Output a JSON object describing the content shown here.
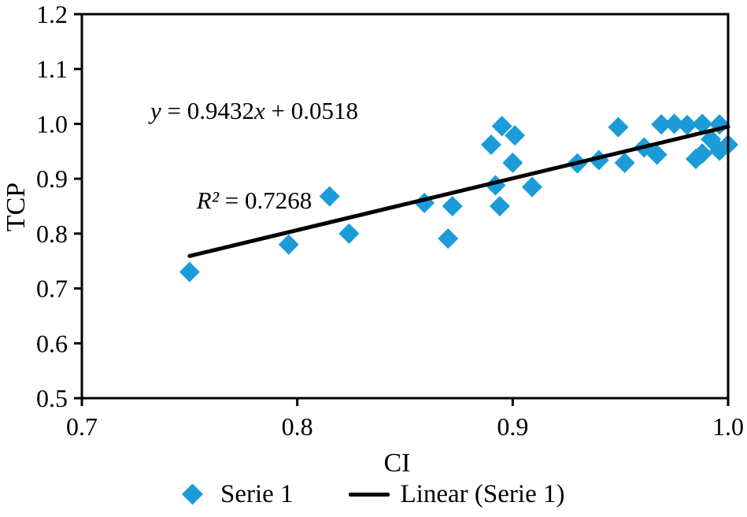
{
  "chart_data": {
    "type": "scatter",
    "title": "",
    "xlabel": "CI",
    "ylabel": "TCP",
    "xlim": [
      0.7,
      1.0
    ],
    "ylim": [
      0.5,
      1.2
    ],
    "x_ticks": [
      "0.7",
      "0.8",
      "0.9",
      "1.0"
    ],
    "y_ticks": [
      "0.5",
      "0.6",
      "0.7",
      "0.8",
      "0.9",
      "1.0",
      "1.1",
      "1.2"
    ],
    "grid": false,
    "legend_position": "bottom",
    "series": [
      {
        "name": "Serie 1",
        "type": "scatter",
        "marker": "diamond",
        "color": "#1B9CD8",
        "points": [
          [
            0.75,
            0.73
          ],
          [
            0.796,
            0.78
          ],
          [
            0.815,
            0.868
          ],
          [
            0.824,
            0.8
          ],
          [
            0.859,
            0.856
          ],
          [
            0.872,
            0.85
          ],
          [
            0.87,
            0.791
          ],
          [
            0.89,
            0.962
          ],
          [
            0.895,
            0.996
          ],
          [
            0.901,
            0.979
          ],
          [
            0.9,
            0.929
          ],
          [
            0.892,
            0.888
          ],
          [
            0.894,
            0.85
          ],
          [
            0.909,
            0.885
          ],
          [
            0.93,
            0.928
          ],
          [
            0.94,
            0.934
          ],
          [
            0.949,
            0.994
          ],
          [
            0.952,
            0.929
          ],
          [
            0.961,
            0.957
          ],
          [
            0.967,
            0.944
          ],
          [
            0.969,
            0.999
          ],
          [
            0.975,
            1.0
          ],
          [
            0.981,
            0.998
          ],
          [
            0.988,
            1.0
          ],
          [
            0.996,
            0.999
          ],
          [
            0.992,
            0.972
          ],
          [
            0.988,
            0.946
          ],
          [
            0.996,
            0.951
          ],
          [
            1.0,
            0.962
          ],
          [
            0.985,
            0.936
          ]
        ]
      },
      {
        "name": "Linear (Serie 1)",
        "type": "trendline",
        "color": "#000000",
        "slope": 0.9432,
        "intercept": 0.0518,
        "x_start": 0.75,
        "x_end": 1.0
      }
    ],
    "annotation": {
      "line1": "y = 0.9432x + 0.0518",
      "line2": "R² = 0.7268"
    }
  },
  "equation": {
    "y_var": "y",
    "line1_mid": " = 0.9432",
    "x_var": "x",
    "line1_end": " + 0.0518",
    "r_label": "R²",
    "line2_rest": " = 0.7268"
  }
}
